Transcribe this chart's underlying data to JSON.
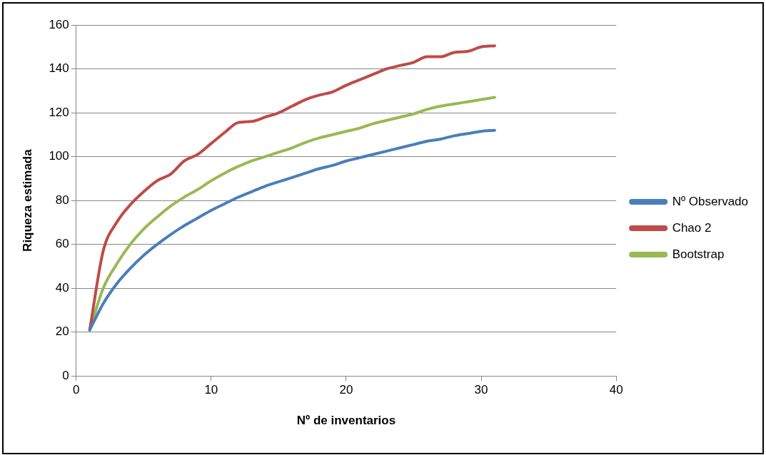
{
  "chart_data": {
    "type": "line",
    "xlabel": "Nº de inventarios",
    "ylabel": "Riqueza estimada",
    "x": [
      1,
      2,
      3,
      4,
      5,
      6,
      7,
      8,
      9,
      10,
      11,
      12,
      13,
      14,
      15,
      16,
      17,
      18,
      19,
      20,
      21,
      22,
      23,
      24,
      25,
      26,
      27,
      28,
      29,
      30,
      31
    ],
    "series": [
      {
        "name": "Nº Observado",
        "color": "#4a7ebb",
        "values": [
          21,
          33,
          42,
          49,
          55,
          60,
          64.5,
          68.5,
          72,
          75.5,
          78.5,
          81.5,
          84,
          86.5,
          88.5,
          90.5,
          92.5,
          94.5,
          96,
          98,
          99.5,
          101,
          102.5,
          104,
          105.5,
          107,
          108,
          109.5,
          110.5,
          111.5,
          112
        ]
      },
      {
        "name": "Chao 2",
        "color": "#be4b48",
        "values": [
          21,
          57,
          70,
          78,
          84,
          89,
          92,
          98,
          101,
          106,
          111,
          115.5,
          116,
          118,
          120,
          123,
          126,
          128,
          129.5,
          132.5,
          135,
          137.5,
          140,
          141.5,
          143,
          145.5,
          145.5,
          147.5,
          148,
          150,
          150.5
        ]
      },
      {
        "name": "Bootstrap",
        "color": "#98b954",
        "values": [
          21,
          40,
          51,
          60,
          67,
          72.5,
          77.5,
          81.5,
          85,
          89,
          92.5,
          95.5,
          98,
          100,
          102,
          104,
          106.5,
          108.5,
          110,
          111.5,
          113,
          115,
          116.5,
          118,
          119.5,
          121.5,
          123,
          124,
          125,
          126,
          127
        ]
      }
    ],
    "xlim": [
      0,
      40
    ],
    "xticks": [
      0,
      10,
      20,
      30,
      40
    ],
    "ylim": [
      0,
      160
    ],
    "yticks": [
      0,
      20,
      40,
      60,
      80,
      100,
      120,
      140,
      160
    ],
    "grid": "y",
    "legend": "right",
    "marker": "none",
    "line_style": "solid"
  }
}
